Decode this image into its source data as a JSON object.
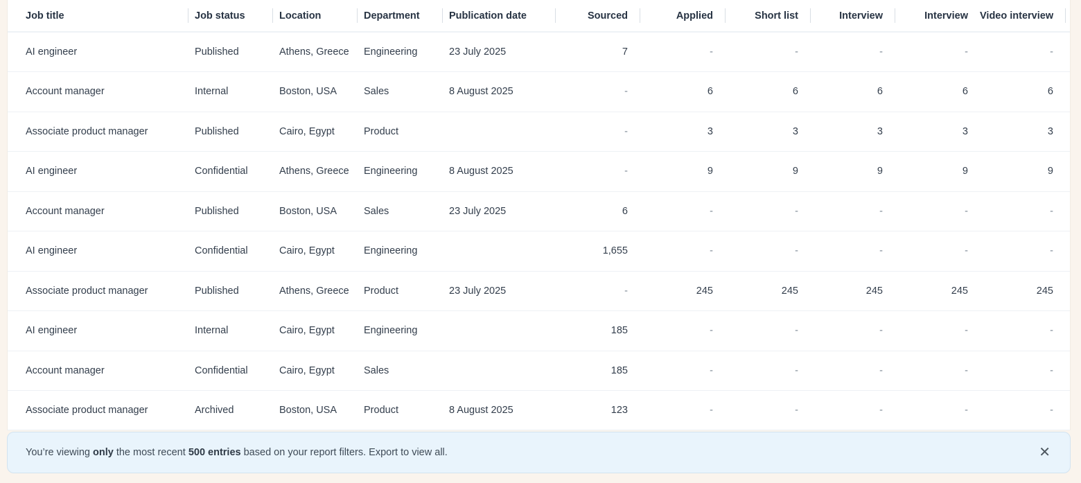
{
  "table": {
    "columns": [
      {
        "key": "job_title",
        "label": "Job title",
        "align": "left"
      },
      {
        "key": "job_status",
        "label": "Job status",
        "align": "left"
      },
      {
        "key": "location",
        "label": "Location",
        "align": "left"
      },
      {
        "key": "department",
        "label": "Department",
        "align": "left"
      },
      {
        "key": "publication_date",
        "label": "Publication date",
        "align": "left"
      },
      {
        "key": "sourced",
        "label": "Sourced",
        "align": "right"
      },
      {
        "key": "applied",
        "label": "Applied",
        "align": "right"
      },
      {
        "key": "short_list",
        "label": "Short list",
        "align": "right"
      },
      {
        "key": "interview",
        "label": "Interview",
        "align": "right"
      },
      {
        "key": "interview_2",
        "label": "Interview",
        "align": "right"
      },
      {
        "key": "video_interview",
        "label": "Video interview",
        "align": "right"
      }
    ],
    "rows": [
      [
        "AI engineer",
        "Published",
        "Athens, Greece",
        "Engineering",
        "23 July 2025",
        "7",
        "-",
        "-",
        "-",
        "-",
        "-"
      ],
      [
        "Account manager",
        "Internal",
        "Boston, USA",
        "Sales",
        "8 August 2025",
        "-",
        "6",
        "6",
        "6",
        "6",
        "6"
      ],
      [
        "Associate product manager",
        "Published",
        "Cairo, Egypt",
        "Product",
        "",
        "-",
        "3",
        "3",
        "3",
        "3",
        "3"
      ],
      [
        "AI engineer",
        "Confidential",
        "Athens, Greece",
        "Engineering",
        "8 August 2025",
        "-",
        "9",
        "9",
        "9",
        "9",
        "9"
      ],
      [
        "Account manager",
        "Published",
        "Boston, USA",
        "Sales",
        "23 July 2025",
        "6",
        "-",
        "-",
        "-",
        "-",
        "-"
      ],
      [
        "AI engineer",
        "Confidential",
        "Cairo, Egypt",
        "Engineering",
        "",
        "1,655",
        "-",
        "-",
        "-",
        "-",
        "-"
      ],
      [
        "Associate product manager",
        "Published",
        "Athens, Greece",
        "Product",
        "23 July 2025",
        "-",
        "245",
        "245",
        "245",
        "245",
        "245"
      ],
      [
        "AI engineer",
        "Internal",
        "Cairo, Egypt",
        "Engineering",
        "",
        "185",
        "-",
        "-",
        "-",
        "-",
        "-"
      ],
      [
        "Account manager",
        "Confidential",
        "Cairo, Egypt",
        "Sales",
        "",
        "185",
        "-",
        "-",
        "-",
        "-",
        "-"
      ],
      [
        "Associate product manager",
        "Archived",
        "Boston, USA",
        "Product",
        "8 August 2025",
        "123",
        "-",
        "-",
        "-",
        "-",
        "-"
      ]
    ]
  },
  "banner": {
    "text_1": "You’re viewing ",
    "bold_1": "only",
    "text_2": " the most recent ",
    "bold_2": "500 entries",
    "text_3": " based on your report filters. Export to view all."
  },
  "icons": {
    "close": "✕"
  },
  "colors": {
    "page_background": "#faf4ed",
    "card_background": "#ffffff",
    "banner_background": "#e9f4fc",
    "banner_border": "#d2e3f0",
    "text_primary": "#333e4c",
    "text_muted": "#7e8a96",
    "row_divider": "#eef1f5"
  }
}
